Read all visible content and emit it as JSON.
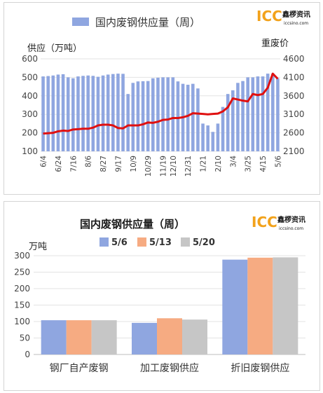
{
  "logo": {
    "mark": "ICC",
    "name": "鑫椤资讯",
    "domain": "iccsino.com"
  },
  "chart_data": [
    {
      "type": "bar+line",
      "legend": "国内废钢供应量（周）",
      "ylabel_left": "供应（万吨）",
      "ylabel_right": "重废价",
      "ylim_left": [
        100,
        600
      ],
      "ylim_right": [
        2100,
        4600
      ],
      "yticks_left": [
        100,
        200,
        300,
        400,
        500,
        600
      ],
      "yticks_right": [
        2100,
        2600,
        3100,
        3600,
        4100,
        4600
      ],
      "xticklabels": [
        "6/4",
        "6/24",
        "7/16",
        "8/6",
        "8/27",
        "9/17",
        "10/9",
        "10/29",
        "11/19",
        "12/10",
        "12/31",
        "1/21",
        "2/10",
        "3/4",
        "3/25",
        "4/15",
        "5/6"
      ],
      "bar_series": {
        "name": "国内废钢供应量（周）",
        "values": [
          505,
          507,
          510,
          515,
          517,
          500,
          495,
          505,
          508,
          510,
          508,
          503,
          510,
          515,
          518,
          520,
          519,
          410,
          470,
          478,
          479,
          480,
          495,
          498,
          500,
          500,
          500,
          478,
          465,
          460,
          465,
          440,
          250,
          240,
          205,
          250,
          340,
          410,
          430,
          470,
          480,
          500,
          500,
          505,
          505,
          520,
          520,
          495
        ]
      },
      "line_series": {
        "name": "重废价",
        "values": [
          2580,
          2590,
          2600,
          2640,
          2660,
          2650,
          2690,
          2700,
          2710,
          2710,
          2740,
          2800,
          2820,
          2820,
          2800,
          2730,
          2720,
          2800,
          2800,
          2800,
          2830,
          2880,
          2870,
          2900,
          2950,
          2960,
          3000,
          3000,
          3020,
          3060,
          3130,
          3120,
          3110,
          3100,
          3110,
          3120,
          3180,
          3290,
          3530,
          3500,
          3470,
          3450,
          3650,
          3620,
          3650,
          3820,
          4200,
          4060
        ]
      }
    },
    {
      "type": "bar",
      "title": "国内废钢供应量（周）",
      "ylabel": "万吨",
      "ylim": [
        0,
        300
      ],
      "yticks": [
        0,
        50,
        100,
        150,
        200,
        250,
        300
      ],
      "categories": [
        "钢厂自产废钢",
        "加工废钢供应",
        "折旧废钢供应"
      ],
      "series": [
        {
          "name": "5/6",
          "values": [
            104,
            96,
            288
          ]
        },
        {
          "name": "5/13",
          "values": [
            104,
            110,
            294
          ]
        },
        {
          "name": "5/20",
          "values": [
            104,
            106,
            295
          ]
        }
      ],
      "colors": [
        "#8fa6e0",
        "#f6ab82",
        "#c6c6c6"
      ]
    }
  ]
}
